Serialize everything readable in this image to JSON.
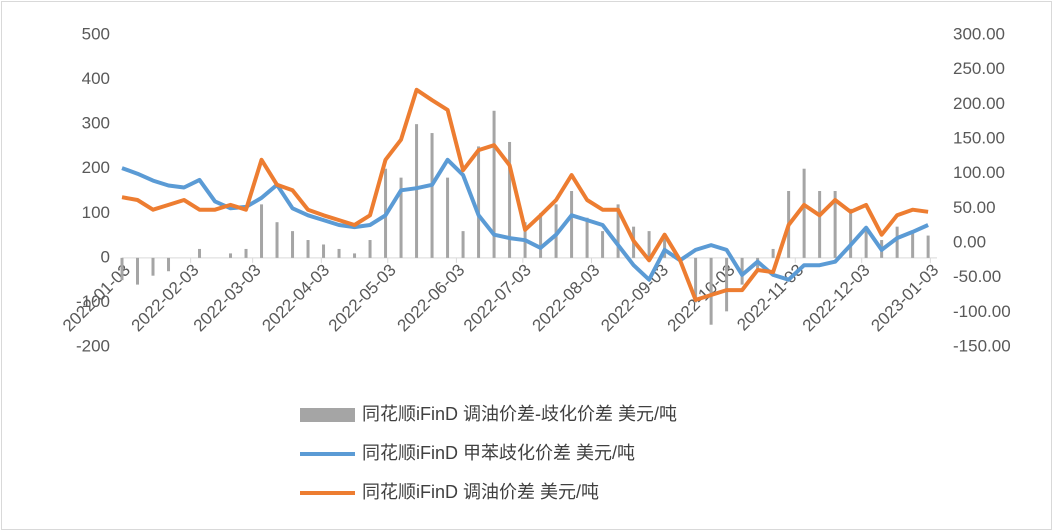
{
  "chart_data": {
    "type": "bar-line",
    "x": [
      "2022-01-03",
      "2022-01-10",
      "2022-01-17",
      "2022-01-24",
      "2022-01-31",
      "2022-02-07",
      "2022-02-14",
      "2022-02-21",
      "2022-02-28",
      "2022-03-07",
      "2022-03-14",
      "2022-03-21",
      "2022-03-28",
      "2022-04-04",
      "2022-04-11",
      "2022-04-18",
      "2022-04-25",
      "2022-05-02",
      "2022-05-09",
      "2022-05-16",
      "2022-05-23",
      "2022-05-30",
      "2022-06-06",
      "2022-06-13",
      "2022-06-20",
      "2022-06-27",
      "2022-07-04",
      "2022-07-11",
      "2022-07-18",
      "2022-07-25",
      "2022-08-01",
      "2022-08-08",
      "2022-08-15",
      "2022-08-22",
      "2022-08-29",
      "2022-09-05",
      "2022-09-12",
      "2022-09-19",
      "2022-09-26",
      "2022-10-03",
      "2022-10-10",
      "2022-10-17",
      "2022-10-24",
      "2022-10-31",
      "2022-11-07",
      "2022-11-14",
      "2022-11-21",
      "2022-11-28",
      "2022-12-05",
      "2022-12-12",
      "2022-12-19",
      "2022-12-26",
      "2023-01-02"
    ],
    "series": [
      {
        "name": "同花顺iFinD 调油价差-歧化价差 美元/吨",
        "color": "#a5a5a5",
        "kind": "bar",
        "axis": "y",
        "values": [
          -50,
          -60,
          -40,
          -30,
          0,
          20,
          0,
          10,
          20,
          120,
          80,
          60,
          40,
          30,
          20,
          10,
          40,
          200,
          180,
          300,
          280,
          180,
          60,
          250,
          330,
          260,
          80,
          100,
          120,
          150,
          90,
          60,
          120,
          70,
          60,
          50,
          0,
          -100,
          -150,
          -120,
          -60,
          -30,
          20,
          150,
          200,
          150,
          150,
          110,
          70,
          40,
          70,
          60,
          50
        ]
      },
      {
        "name": "同花顺iFinD 甲苯歧化价差 美元/吨",
        "color": "#5b9bd5",
        "kind": "line",
        "axis": "y2",
        "values": [
          108,
          100,
          90,
          83,
          80,
          91,
          60,
          50,
          52,
          65,
          84,
          50,
          40,
          33,
          26,
          23,
          26,
          40,
          76,
          79,
          84,
          120,
          98,
          40,
          12,
          7,
          4,
          -7,
          12,
          40,
          33,
          26,
          -3,
          -32,
          -53,
          -10,
          -25,
          -10,
          -3,
          -10,
          -46,
          -27,
          -46,
          -53,
          -32,
          -32,
          -27,
          -3,
          22,
          -10,
          7,
          16,
          26
        ]
      },
      {
        "name": "同花顺iFinD 调油价差 美元/吨",
        "color": "#ed7d31",
        "kind": "line",
        "axis": "y2",
        "values": [
          66,
          62,
          48,
          55,
          62,
          48,
          48,
          55,
          48,
          120,
          84,
          76,
          48,
          40,
          33,
          26,
          40,
          120,
          149,
          221,
          206,
          192,
          105,
          134,
          141,
          112,
          19,
          40,
          62,
          98,
          62,
          48,
          48,
          3,
          -25,
          12,
          -25,
          -82,
          -75,
          -68,
          -68,
          -39,
          -42,
          26,
          55,
          40,
          62,
          45,
          55,
          12,
          40,
          48,
          45
        ]
      }
    ],
    "xlim": [
      "2022-01-03",
      "2023-01-06"
    ],
    "xticks": [
      "2022-01-03",
      "2022-02-03",
      "2022-03-03",
      "2022-04-03",
      "2022-05-03",
      "2022-06-03",
      "2022-07-03",
      "2022-08-03",
      "2022-09-03",
      "2022-10-03",
      "2022-11-03",
      "2022-12-03",
      "2023-01-03"
    ],
    "ylim": [
      -200,
      500
    ],
    "yticks": [
      -200,
      -100,
      0,
      100,
      200,
      300,
      400,
      500
    ],
    "y2lim": [
      -150,
      300
    ],
    "y2ticks": [
      {
        "value": -150,
        "label": "-150.00"
      },
      {
        "value": -100,
        "label": "-100.00"
      },
      {
        "value": -50,
        "label": "-50.00"
      },
      {
        "value": 0,
        "label": "0.00"
      },
      {
        "value": 50,
        "label": "50.00"
      },
      {
        "value": 100,
        "label": "100.00"
      },
      {
        "value": 150,
        "label": "150.00"
      },
      {
        "value": 200,
        "label": "200.00"
      },
      {
        "value": 250,
        "label": "250.00"
      },
      {
        "value": 300,
        "label": "300.00"
      }
    ],
    "legend": "bottom"
  }
}
